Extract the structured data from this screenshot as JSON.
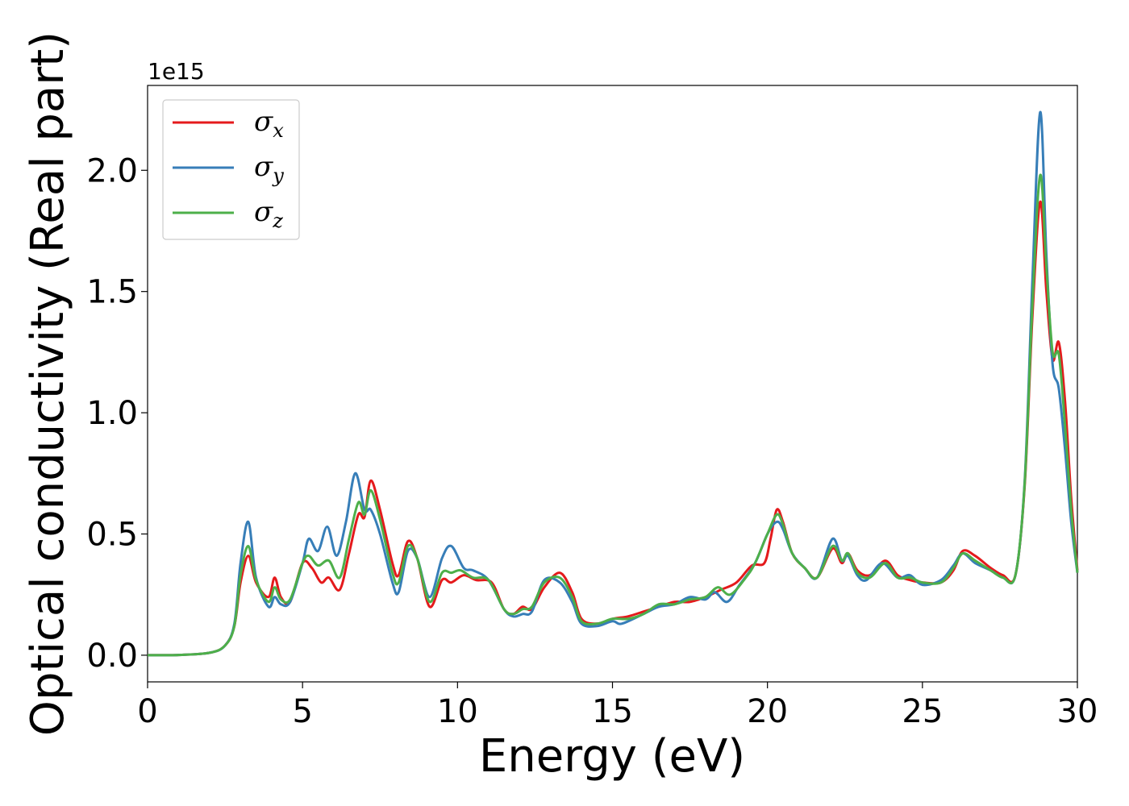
{
  "chart_data": {
    "type": "line",
    "title": "",
    "xlabel": "Energy (eV)",
    "ylabel": "Optical conductivity (Real part)",
    "y_offset_label": "1e15",
    "xlim": [
      0,
      30
    ],
    "ylim": [
      -0.11,
      2.35
    ],
    "xticks": [
      0,
      5,
      10,
      15,
      20,
      25,
      30
    ],
    "xtick_labels": [
      "0",
      "5",
      "10",
      "15",
      "20",
      "25",
      "30"
    ],
    "yticks": [
      0.0,
      0.5,
      1.0,
      1.5,
      2.0
    ],
    "ytick_labels": [
      "0.0",
      "0.5",
      "1.0",
      "1.5",
      "2.0"
    ],
    "grid": false,
    "legend_position": "top-left",
    "series": [
      {
        "name": "σx",
        "legend_symbol": "σ",
        "legend_sub": "x",
        "color": "#e41a1c",
        "points": [
          [
            0,
            0
          ],
          [
            1,
            0.001
          ],
          [
            2,
            0.01
          ],
          [
            2.5,
            0.04
          ],
          [
            2.8,
            0.12
          ],
          [
            3.0,
            0.3
          ],
          [
            3.25,
            0.41
          ],
          [
            3.5,
            0.3
          ],
          [
            3.9,
            0.24
          ],
          [
            4.1,
            0.32
          ],
          [
            4.3,
            0.24
          ],
          [
            4.6,
            0.22
          ],
          [
            5.0,
            0.38
          ],
          [
            5.3,
            0.36
          ],
          [
            5.6,
            0.3
          ],
          [
            5.85,
            0.32
          ],
          [
            6.2,
            0.27
          ],
          [
            6.5,
            0.42
          ],
          [
            6.8,
            0.58
          ],
          [
            7.0,
            0.57
          ],
          [
            7.2,
            0.72
          ],
          [
            7.5,
            0.6
          ],
          [
            7.9,
            0.38
          ],
          [
            8.1,
            0.33
          ],
          [
            8.4,
            0.47
          ],
          [
            8.7,
            0.4
          ],
          [
            9.1,
            0.2
          ],
          [
            9.5,
            0.31
          ],
          [
            9.8,
            0.3
          ],
          [
            10.2,
            0.33
          ],
          [
            10.6,
            0.31
          ],
          [
            11.1,
            0.3
          ],
          [
            11.5,
            0.19
          ],
          [
            11.8,
            0.17
          ],
          [
            12.1,
            0.2
          ],
          [
            12.4,
            0.19
          ],
          [
            12.8,
            0.28
          ],
          [
            13.3,
            0.34
          ],
          [
            13.7,
            0.26
          ],
          [
            14.0,
            0.15
          ],
          [
            14.5,
            0.13
          ],
          [
            15.0,
            0.15
          ],
          [
            15.5,
            0.16
          ],
          [
            16.0,
            0.18
          ],
          [
            16.5,
            0.2
          ],
          [
            17.0,
            0.22
          ],
          [
            17.5,
            0.22
          ],
          [
            18.0,
            0.24
          ],
          [
            18.5,
            0.27
          ],
          [
            19.0,
            0.3
          ],
          [
            19.5,
            0.37
          ],
          [
            19.9,
            0.38
          ],
          [
            20.1,
            0.48
          ],
          [
            20.3,
            0.6
          ],
          [
            20.5,
            0.55
          ],
          [
            20.8,
            0.42
          ],
          [
            21.2,
            0.36
          ],
          [
            21.6,
            0.32
          ],
          [
            22.1,
            0.44
          ],
          [
            22.4,
            0.38
          ],
          [
            22.6,
            0.42
          ],
          [
            22.9,
            0.35
          ],
          [
            23.3,
            0.33
          ],
          [
            23.8,
            0.39
          ],
          [
            24.2,
            0.33
          ],
          [
            24.6,
            0.31
          ],
          [
            25.0,
            0.3
          ],
          [
            25.6,
            0.3
          ],
          [
            26.0,
            0.35
          ],
          [
            26.3,
            0.43
          ],
          [
            26.7,
            0.41
          ],
          [
            27.2,
            0.36
          ],
          [
            27.6,
            0.33
          ],
          [
            28.0,
            0.33
          ],
          [
            28.3,
            0.7
          ],
          [
            28.55,
            1.4
          ],
          [
            28.8,
            1.87
          ],
          [
            29.0,
            1.5
          ],
          [
            29.2,
            1.22
          ],
          [
            29.4,
            1.29
          ],
          [
            29.6,
            1.05
          ],
          [
            29.8,
            0.65
          ],
          [
            30.0,
            0.35
          ]
        ]
      },
      {
        "name": "σy",
        "legend_symbol": "σ",
        "legend_sub": "y",
        "color": "#377eb8",
        "points": [
          [
            0,
            0
          ],
          [
            1,
            0.001
          ],
          [
            2,
            0.01
          ],
          [
            2.5,
            0.04
          ],
          [
            2.8,
            0.13
          ],
          [
            3.0,
            0.38
          ],
          [
            3.25,
            0.55
          ],
          [
            3.5,
            0.32
          ],
          [
            3.9,
            0.2
          ],
          [
            4.1,
            0.24
          ],
          [
            4.3,
            0.21
          ],
          [
            4.6,
            0.22
          ],
          [
            5.0,
            0.38
          ],
          [
            5.2,
            0.48
          ],
          [
            5.5,
            0.43
          ],
          [
            5.8,
            0.53
          ],
          [
            6.1,
            0.41
          ],
          [
            6.4,
            0.55
          ],
          [
            6.7,
            0.75
          ],
          [
            7.0,
            0.6
          ],
          [
            7.2,
            0.6
          ],
          [
            7.5,
            0.5
          ],
          [
            7.9,
            0.3
          ],
          [
            8.1,
            0.26
          ],
          [
            8.4,
            0.43
          ],
          [
            8.7,
            0.4
          ],
          [
            9.1,
            0.24
          ],
          [
            9.5,
            0.4
          ],
          [
            9.8,
            0.45
          ],
          [
            10.2,
            0.36
          ],
          [
            10.5,
            0.35
          ],
          [
            11.0,
            0.31
          ],
          [
            11.5,
            0.19
          ],
          [
            11.8,
            0.16
          ],
          [
            12.1,
            0.17
          ],
          [
            12.4,
            0.18
          ],
          [
            12.8,
            0.31
          ],
          [
            13.3,
            0.3
          ],
          [
            13.7,
            0.22
          ],
          [
            14.0,
            0.13
          ],
          [
            14.5,
            0.12
          ],
          [
            15.0,
            0.14
          ],
          [
            15.3,
            0.13
          ],
          [
            16.0,
            0.17
          ],
          [
            16.5,
            0.2
          ],
          [
            17.0,
            0.21
          ],
          [
            17.5,
            0.24
          ],
          [
            18.0,
            0.23
          ],
          [
            18.3,
            0.26
          ],
          [
            18.7,
            0.22
          ],
          [
            19.1,
            0.29
          ],
          [
            19.6,
            0.38
          ],
          [
            20.0,
            0.5
          ],
          [
            20.3,
            0.55
          ],
          [
            20.5,
            0.52
          ],
          [
            20.8,
            0.42
          ],
          [
            21.2,
            0.36
          ],
          [
            21.6,
            0.32
          ],
          [
            22.1,
            0.48
          ],
          [
            22.4,
            0.39
          ],
          [
            22.6,
            0.41
          ],
          [
            22.9,
            0.33
          ],
          [
            23.2,
            0.31
          ],
          [
            23.7,
            0.38
          ],
          [
            24.2,
            0.32
          ],
          [
            24.6,
            0.33
          ],
          [
            25.0,
            0.29
          ],
          [
            25.6,
            0.31
          ],
          [
            26.0,
            0.37
          ],
          [
            26.3,
            0.42
          ],
          [
            26.7,
            0.38
          ],
          [
            27.2,
            0.35
          ],
          [
            27.6,
            0.32
          ],
          [
            28.0,
            0.33
          ],
          [
            28.3,
            0.72
          ],
          [
            28.55,
            1.55
          ],
          [
            28.8,
            2.24
          ],
          [
            29.0,
            1.65
          ],
          [
            29.2,
            1.2
          ],
          [
            29.4,
            1.1
          ],
          [
            29.6,
            0.85
          ],
          [
            29.8,
            0.55
          ],
          [
            30.0,
            0.34
          ]
        ]
      },
      {
        "name": "σz",
        "legend_symbol": "σ",
        "legend_sub": "z",
        "color": "#4daf4a",
        "points": [
          [
            0,
            0
          ],
          [
            1,
            0.001
          ],
          [
            2,
            0.01
          ],
          [
            2.5,
            0.04
          ],
          [
            2.8,
            0.12
          ],
          [
            3.0,
            0.33
          ],
          [
            3.25,
            0.45
          ],
          [
            3.5,
            0.31
          ],
          [
            3.9,
            0.22
          ],
          [
            4.1,
            0.28
          ],
          [
            4.3,
            0.23
          ],
          [
            4.6,
            0.23
          ],
          [
            5.0,
            0.38
          ],
          [
            5.2,
            0.41
          ],
          [
            5.5,
            0.37
          ],
          [
            5.85,
            0.39
          ],
          [
            6.2,
            0.32
          ],
          [
            6.5,
            0.48
          ],
          [
            6.8,
            0.63
          ],
          [
            7.0,
            0.58
          ],
          [
            7.2,
            0.68
          ],
          [
            7.5,
            0.56
          ],
          [
            7.9,
            0.34
          ],
          [
            8.1,
            0.3
          ],
          [
            8.4,
            0.45
          ],
          [
            8.7,
            0.4
          ],
          [
            9.1,
            0.22
          ],
          [
            9.5,
            0.34
          ],
          [
            9.8,
            0.34
          ],
          [
            10.1,
            0.35
          ],
          [
            10.5,
            0.32
          ],
          [
            11.0,
            0.31
          ],
          [
            11.5,
            0.19
          ],
          [
            11.8,
            0.17
          ],
          [
            12.1,
            0.19
          ],
          [
            12.4,
            0.2
          ],
          [
            12.8,
            0.3
          ],
          [
            13.3,
            0.32
          ],
          [
            13.7,
            0.24
          ],
          [
            14.0,
            0.14
          ],
          [
            14.5,
            0.13
          ],
          [
            15.0,
            0.15
          ],
          [
            15.5,
            0.15
          ],
          [
            16.0,
            0.17
          ],
          [
            16.5,
            0.21
          ],
          [
            17.0,
            0.21
          ],
          [
            17.5,
            0.23
          ],
          [
            18.0,
            0.24
          ],
          [
            18.4,
            0.28
          ],
          [
            18.8,
            0.25
          ],
          [
            19.3,
            0.32
          ],
          [
            19.6,
            0.38
          ],
          [
            20.0,
            0.5
          ],
          [
            20.3,
            0.58
          ],
          [
            20.5,
            0.54
          ],
          [
            20.8,
            0.42
          ],
          [
            21.2,
            0.36
          ],
          [
            21.6,
            0.32
          ],
          [
            22.1,
            0.45
          ],
          [
            22.4,
            0.39
          ],
          [
            22.6,
            0.42
          ],
          [
            22.9,
            0.34
          ],
          [
            23.3,
            0.32
          ],
          [
            23.8,
            0.38
          ],
          [
            24.2,
            0.32
          ],
          [
            24.6,
            0.32
          ],
          [
            25.0,
            0.3
          ],
          [
            25.6,
            0.3
          ],
          [
            26.0,
            0.36
          ],
          [
            26.3,
            0.42
          ],
          [
            26.7,
            0.39
          ],
          [
            27.2,
            0.35
          ],
          [
            27.6,
            0.32
          ],
          [
            28.0,
            0.33
          ],
          [
            28.3,
            0.71
          ],
          [
            28.55,
            1.45
          ],
          [
            28.8,
            1.98
          ],
          [
            29.0,
            1.6
          ],
          [
            29.2,
            1.25
          ],
          [
            29.4,
            1.24
          ],
          [
            29.6,
            0.95
          ],
          [
            29.8,
            0.6
          ],
          [
            30.0,
            0.34
          ]
        ]
      }
    ]
  }
}
